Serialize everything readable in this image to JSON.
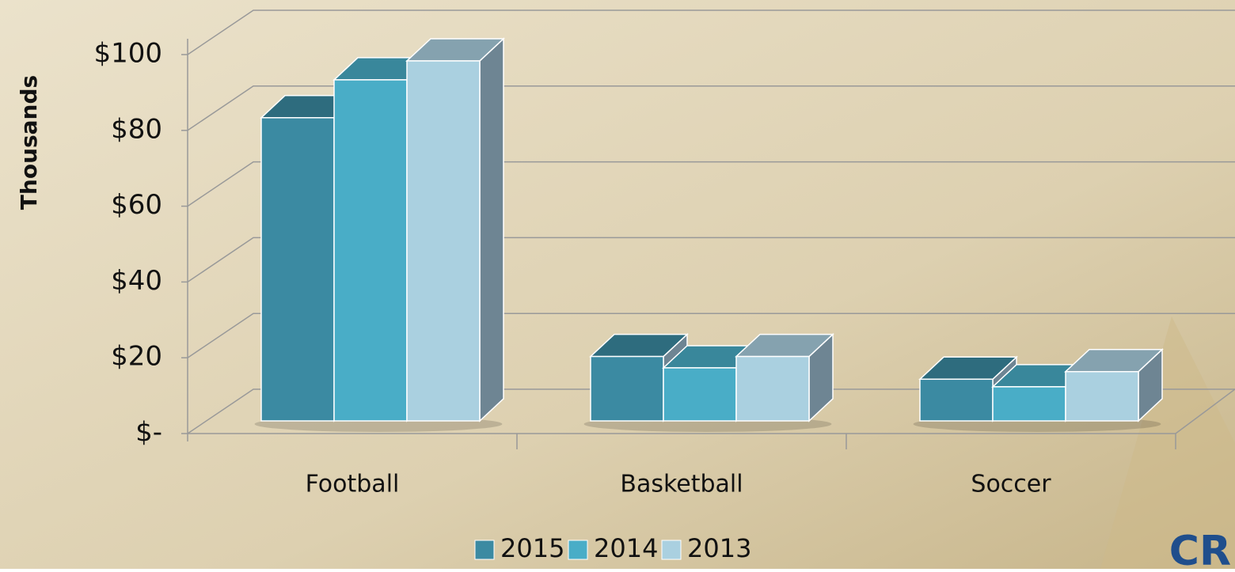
{
  "chart_data": {
    "type": "bar3d",
    "y_label": "Thousands",
    "categories": [
      "Football",
      "Basketball",
      "Soccer"
    ],
    "series": [
      {
        "name": "2015",
        "color": "#3b8aa2",
        "values": [
          80,
          17,
          11
        ]
      },
      {
        "name": "2014",
        "color": "#49adc7",
        "values": [
          90,
          14,
          9
        ]
      },
      {
        "name": "2013",
        "color": "#aad0e0",
        "values": [
          95,
          17,
          13
        ]
      }
    ],
    "ylim": [
      0,
      100
    ],
    "yticks": [
      {
        "value": 0,
        "label": "$-"
      },
      {
        "value": 20,
        "label": "$20"
      },
      {
        "value": 40,
        "label": "$40"
      },
      {
        "value": 60,
        "label": "$60"
      },
      {
        "value": 80,
        "label": "$80"
      },
      {
        "value": 100,
        "label": "$100"
      }
    ],
    "grid": true,
    "legend": "bottom",
    "logo": "CR"
  }
}
